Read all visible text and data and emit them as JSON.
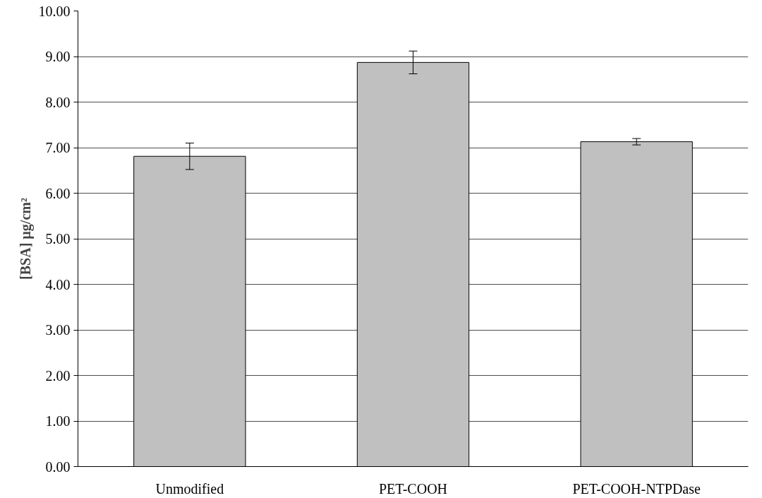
{
  "chart_data": {
    "type": "bar",
    "ylabel": "[BSA] µg/cm²",
    "categories": [
      "Unmodified",
      "PET-COOH",
      "PET-COOH-NTPDase"
    ],
    "values": [
      6.81,
      8.87,
      7.13
    ],
    "errors": [
      0.29,
      0.25,
      0.07
    ],
    "color": "#c0c0c0",
    "ylim": [
      0,
      10
    ],
    "yticks": [
      {
        "value": 0,
        "label": "0.00"
      },
      {
        "value": 1,
        "label": "1.00"
      },
      {
        "value": 2,
        "label": "2.00"
      },
      {
        "value": 3,
        "label": "3.00"
      },
      {
        "value": 4,
        "label": "4.00"
      },
      {
        "value": 5,
        "label": "5.00"
      },
      {
        "value": 6,
        "label": "6.00"
      },
      {
        "value": 7,
        "label": "7.00"
      },
      {
        "value": 8,
        "label": "8.00"
      },
      {
        "value": 9,
        "label": "9.00"
      },
      {
        "value": 10,
        "label": "10.00"
      }
    ],
    "grid": "y"
  }
}
